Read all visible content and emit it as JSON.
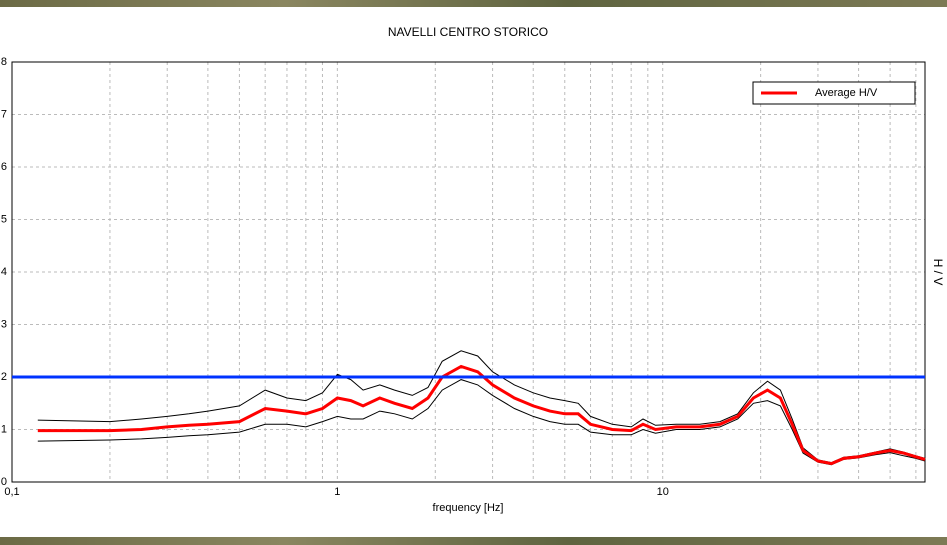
{
  "chart_data": {
    "type": "line",
    "title": "NAVELLI CENTRO STORICO",
    "x_label": "frequency [Hz]",
    "y_label": "H / V",
    "log_x": true,
    "grid": true,
    "legend": "upper right",
    "x": [
      0.12,
      0.2,
      0.25,
      0.3,
      0.35,
      0.4,
      0.5,
      0.6,
      0.7,
      0.8,
      0.9,
      1.0,
      1.1,
      1.2,
      1.35,
      1.5,
      1.7,
      1.9,
      2.1,
      2.4,
      2.7,
      3.0,
      3.5,
      4,
      4.5,
      5,
      5.5,
      6,
      7,
      8,
      8.7,
      9.5,
      11,
      13,
      15,
      17,
      19,
      21,
      23,
      25,
      27,
      30,
      33,
      36,
      40,
      45,
      50,
      55,
      60,
      64
    ],
    "series": [
      {
        "color": "#000000",
        "values": [
          1.18,
          1.15,
          1.2,
          1.25,
          1.3,
          1.35,
          1.45,
          1.75,
          1.6,
          1.55,
          1.7,
          2.05,
          1.95,
          1.75,
          1.85,
          1.75,
          1.65,
          1.8,
          2.3,
          2.5,
          2.4,
          2.1,
          1.85,
          1.7,
          1.6,
          1.55,
          1.5,
          1.25,
          1.1,
          1.05,
          1.2,
          1.08,
          1.1,
          1.1,
          1.15,
          1.3,
          1.7,
          1.92,
          1.75,
          1.2,
          0.65,
          0.42,
          0.37,
          0.47,
          0.5,
          0.57,
          0.63,
          0.57,
          0.5,
          0.45
        ]
      },
      {
        "color": "#000000",
        "values": [
          0.78,
          0.8,
          0.82,
          0.85,
          0.88,
          0.9,
          0.95,
          1.1,
          1.1,
          1.05,
          1.15,
          1.25,
          1.2,
          1.2,
          1.35,
          1.3,
          1.2,
          1.4,
          1.75,
          1.95,
          1.85,
          1.65,
          1.4,
          1.25,
          1.15,
          1.1,
          1.1,
          0.95,
          0.9,
          0.9,
          1.0,
          0.93,
          1.0,
          1.0,
          1.05,
          1.2,
          1.5,
          1.55,
          1.45,
          1.0,
          0.55,
          0.38,
          0.33,
          0.43,
          0.46,
          0.52,
          0.56,
          0.5,
          0.45,
          0.4
        ]
      },
      {
        "name": "Average H/V",
        "color": "#ff0000",
        "values": [
          0.98,
          0.98,
          1.0,
          1.05,
          1.08,
          1.1,
          1.15,
          1.4,
          1.35,
          1.3,
          1.4,
          1.6,
          1.55,
          1.45,
          1.6,
          1.5,
          1.4,
          1.6,
          2.0,
          2.2,
          2.1,
          1.85,
          1.6,
          1.45,
          1.35,
          1.3,
          1.3,
          1.1,
          1.0,
          0.98,
          1.1,
          1.0,
          1.05,
          1.05,
          1.1,
          1.25,
          1.6,
          1.75,
          1.6,
          1.1,
          0.6,
          0.4,
          0.35,
          0.45,
          0.48,
          0.55,
          0.6,
          0.55,
          0.48,
          0.43
        ]
      }
    ],
    "reference_line": {
      "value": 2,
      "color": "#0033ff"
    },
    "xlim": [
      0.1,
      64
    ],
    "xticks": [
      {
        "value": 0.1,
        "label": "0,1"
      },
      1,
      10
    ],
    "xgrid": [
      0.2,
      0.3,
      0.4,
      0.5,
      0.6,
      0.7,
      0.8,
      0.9,
      2,
      3,
      4,
      5,
      6,
      7,
      8,
      9,
      20,
      30,
      40,
      50,
      60
    ],
    "ylim": [
      0,
      8
    ],
    "yticks": [
      0,
      1,
      2,
      3,
      4,
      5,
      6,
      7,
      8
    ]
  }
}
